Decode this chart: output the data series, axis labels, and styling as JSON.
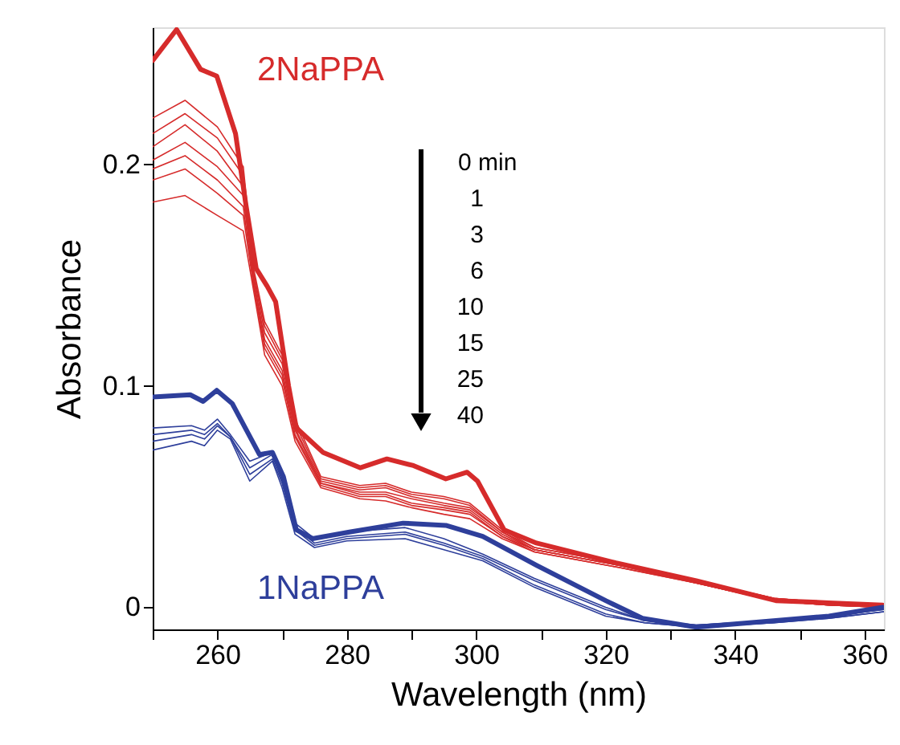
{
  "chart_data": {
    "type": "line",
    "xlabel": "Wavelength (nm)",
    "ylabel": "Absorbance",
    "xlim": [
      250,
      363
    ],
    "ylim": [
      -0.01,
      0.262
    ],
    "xticks": [
      {
        "value": 250,
        "label": null
      },
      260,
      {
        "value": 270,
        "label": null
      },
      280,
      {
        "value": 290,
        "label": null
      },
      300,
      {
        "value": 310,
        "label": null
      },
      320,
      {
        "value": 330,
        "label": null
      },
      340,
      {
        "value": 350,
        "label": null
      },
      360
    ],
    "yticks": [
      0,
      0.1,
      0.2
    ],
    "grid": false,
    "legend": false,
    "marker": "none",
    "line_style": "solid",
    "annotations": [
      "0 min",
      "1",
      "3",
      "6",
      "10",
      "15",
      "25",
      "40"
    ],
    "series": [
      {
        "name": "2NaPPA",
        "color": "#d62b2b",
        "x": [
          250,
          253.7,
          257.4,
          259.9,
          262.8,
          264.4,
          266,
          267.7,
          269,
          271,
          272.2,
          276.3,
          282.1,
          286.2,
          290.3,
          295.3,
          298.6,
          300.2,
          304.3,
          309.3,
          321.6,
          334,
          346.3,
          354.5,
          362.8
        ],
        "values": [
          0.247,
          0.261,
          0.243,
          0.24,
          0.214,
          0.182,
          0.153,
          0.145,
          0.138,
          0.1,
          0.081,
          0.07,
          0.063,
          0.067,
          0.064,
          0.058,
          0.061,
          0.057,
          0.035,
          0.029,
          0.02,
          0.012,
          0.003,
          0.002,
          0.001
        ]
      },
      {
        "color": "#d62b2b",
        "x": [
          250,
          255,
          260,
          264,
          265.6,
          267.3,
          270,
          272,
          276,
          282,
          286,
          290,
          295,
          299,
          304,
          309,
          322,
          334,
          346,
          354.5,
          363
        ],
        "values": [
          0.221,
          0.229,
          0.217,
          0.199,
          0.153,
          0.129,
          0.114,
          0.085,
          0.059,
          0.055,
          0.056,
          0.052,
          0.05,
          0.047,
          0.035,
          0.027,
          0.02,
          0.012,
          0.004,
          0.002,
          0.001
        ]
      },
      {
        "color": "#d62b2b",
        "x": [
          250,
          255,
          260,
          264,
          265.6,
          267.3,
          270,
          272,
          276,
          282,
          286,
          290,
          295,
          299,
          304,
          309,
          322,
          334,
          346,
          354.5,
          363
        ],
        "values": [
          0.214,
          0.223,
          0.212,
          0.195,
          0.151,
          0.127,
          0.112,
          0.083,
          0.058,
          0.054,
          0.055,
          0.051,
          0.049,
          0.046,
          0.034,
          0.027,
          0.02,
          0.012,
          0.004,
          0.002,
          0.001
        ]
      },
      {
        "color": "#d62b2b",
        "x": [
          250,
          255,
          260,
          264,
          265.6,
          267.3,
          270,
          272,
          276,
          282,
          286,
          290,
          295,
          299,
          304,
          309,
          322,
          334,
          346,
          354.5,
          363
        ],
        "values": [
          0.208,
          0.218,
          0.206,
          0.19,
          0.15,
          0.124,
          0.11,
          0.081,
          0.057,
          0.053,
          0.054,
          0.05,
          0.047,
          0.045,
          0.034,
          0.026,
          0.019,
          0.012,
          0.004,
          0.002,
          0.001
        ]
      },
      {
        "color": "#d62b2b",
        "x": [
          250,
          255,
          260,
          264,
          265.6,
          267.3,
          270,
          272,
          276,
          282,
          286,
          290,
          295,
          299,
          304,
          309,
          322,
          334,
          346,
          354.5,
          363
        ],
        "values": [
          0.202,
          0.21,
          0.199,
          0.186,
          0.148,
          0.121,
          0.107,
          0.08,
          0.056,
          0.052,
          0.052,
          0.049,
          0.046,
          0.044,
          0.033,
          0.026,
          0.019,
          0.011,
          0.003,
          0.001,
          0.0
        ]
      },
      {
        "color": "#d62b2b",
        "x": [
          250,
          255,
          260,
          264,
          265.6,
          267.3,
          270,
          272,
          276,
          282,
          286,
          290,
          295,
          299,
          304,
          309,
          322,
          334,
          346,
          354.5,
          363
        ],
        "values": [
          0.198,
          0.204,
          0.193,
          0.181,
          0.147,
          0.119,
          0.105,
          0.078,
          0.056,
          0.051,
          0.051,
          0.047,
          0.045,
          0.043,
          0.032,
          0.026,
          0.019,
          0.011,
          0.003,
          0.001,
          0.0
        ]
      },
      {
        "color": "#d62b2b",
        "x": [
          250,
          255,
          260,
          264,
          265.6,
          267.3,
          270,
          272,
          276,
          282,
          286,
          290,
          295,
          299,
          304,
          309,
          322,
          334,
          346,
          354.5,
          363
        ],
        "values": [
          0.193,
          0.198,
          0.187,
          0.177,
          0.145,
          0.117,
          0.103,
          0.077,
          0.055,
          0.05,
          0.05,
          0.046,
          0.044,
          0.042,
          0.032,
          0.025,
          0.018,
          0.011,
          0.003,
          0.001,
          0.0
        ]
      },
      {
        "color": "#d62b2b",
        "x": [
          250,
          255,
          260,
          264,
          265.6,
          267.3,
          270,
          272,
          276,
          282,
          286,
          290,
          295,
          299,
          304,
          309,
          322,
          334,
          346,
          354.5,
          363
        ],
        "values": [
          0.183,
          0.186,
          0.177,
          0.17,
          0.143,
          0.114,
          0.1,
          0.075,
          0.054,
          0.049,
          0.048,
          0.045,
          0.042,
          0.04,
          0.031,
          0.025,
          0.018,
          0.011,
          0.003,
          0.001,
          0.0
        ]
      },
      {
        "name": "1NaPPA",
        "color": "#2e3f9b",
        "x": [
          250,
          255.8,
          257.8,
          259.9,
          262.3,
          266.5,
          268.5,
          270.2,
          272.2,
          274.7,
          280.4,
          288.7,
          295.3,
          301,
          309.3,
          320,
          325.7,
          334,
          346.3,
          354.5,
          362.8
        ],
        "values": [
          0.095,
          0.096,
          0.093,
          0.098,
          0.092,
          0.069,
          0.07,
          0.059,
          0.035,
          0.031,
          0.034,
          0.038,
          0.037,
          0.032,
          0.019,
          0.003,
          -0.005,
          -0.009,
          -0.006,
          -0.004,
          0.0
        ]
      },
      {
        "color": "#2e3f9b",
        "x": [
          250,
          256,
          258,
          260,
          262,
          265,
          268.5,
          270,
          272,
          275,
          280,
          289,
          295,
          301,
          309,
          320,
          326,
          334,
          346,
          354.5,
          363
        ],
        "values": [
          0.081,
          0.082,
          0.08,
          0.085,
          0.078,
          0.066,
          0.07,
          0.059,
          0.038,
          0.031,
          0.034,
          0.036,
          0.031,
          0.024,
          0.013,
          0.0,
          -0.006,
          -0.008,
          -0.006,
          -0.004,
          -0.001
        ]
      },
      {
        "color": "#2e3f9b",
        "x": [
          250,
          256,
          258,
          260,
          262,
          265,
          268.5,
          270,
          272,
          275,
          280,
          289,
          295,
          301,
          309,
          320,
          326,
          334,
          346,
          354.5,
          363
        ],
        "values": [
          0.078,
          0.08,
          0.078,
          0.083,
          0.077,
          0.063,
          0.069,
          0.057,
          0.036,
          0.029,
          0.032,
          0.034,
          0.029,
          0.023,
          0.012,
          -0.001,
          -0.006,
          -0.008,
          -0.006,
          -0.004,
          -0.001
        ]
      },
      {
        "color": "#2e3f9b",
        "x": [
          250,
          256,
          258,
          260,
          262,
          265,
          268.5,
          270,
          272,
          275,
          280,
          289,
          295,
          301,
          309,
          320,
          326,
          334,
          346,
          354.5,
          363
        ],
        "values": [
          0.075,
          0.078,
          0.076,
          0.082,
          0.077,
          0.06,
          0.067,
          0.056,
          0.035,
          0.028,
          0.031,
          0.033,
          0.028,
          0.022,
          0.01,
          -0.003,
          -0.007,
          -0.009,
          -0.007,
          -0.005,
          -0.002
        ]
      },
      {
        "color": "#2e3f9b",
        "x": [
          250,
          256,
          258,
          260,
          262,
          265,
          268.5,
          270,
          272,
          275,
          280,
          289,
          295,
          301,
          309,
          320,
          326,
          334,
          346,
          354.5,
          363
        ],
        "values": [
          0.071,
          0.075,
          0.073,
          0.08,
          0.076,
          0.057,
          0.066,
          0.054,
          0.033,
          0.027,
          0.03,
          0.031,
          0.026,
          0.021,
          0.009,
          -0.004,
          -0.007,
          -0.009,
          -0.007,
          -0.005,
          -0.002
        ]
      }
    ]
  }
}
